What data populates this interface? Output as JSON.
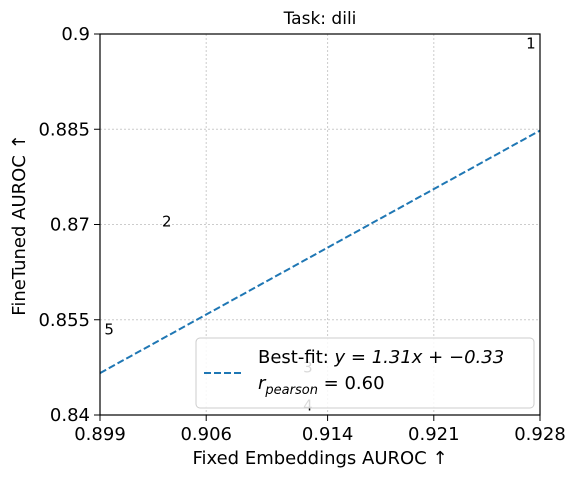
{
  "chart_data": {
    "type": "scatter",
    "title": "Task: dili",
    "xlabel": "Fixed Embeddings AUROC ↑",
    "ylabel": "FineTuned AUROC ↑",
    "xlim": [
      0.899,
      0.928
    ],
    "ylim": [
      0.84,
      0.9
    ],
    "xticks": [
      "0.899",
      "0.906",
      "0.914",
      "0.921",
      "0.928"
    ],
    "xtick_values": [
      0.899,
      0.906,
      0.914,
      0.921,
      0.928
    ],
    "yticks": [
      "0.84",
      "0.855",
      "0.87",
      "0.885",
      "0.9"
    ],
    "ytick_values": [
      0.84,
      0.855,
      0.87,
      0.885,
      0.9
    ],
    "grid": true,
    "points": [
      {
        "label": "1",
        "x": 0.9274,
        "y": 0.8985
      },
      {
        "label": "2",
        "x": 0.9034,
        "y": 0.8705
      },
      {
        "label": "3",
        "x": 0.9127,
        "y": 0.8475
      },
      {
        "label": "4",
        "x": 0.9127,
        "y": 0.8415
      },
      {
        "label": "5",
        "x": 0.8996,
        "y": 0.8535
      }
    ],
    "fit_line": {
      "slope": 1.31,
      "intercept": -0.33,
      "x": [
        0.899,
        0.928
      ],
      "y": [
        0.8466,
        0.8848
      ]
    },
    "legend": {
      "placement": "bottom-right",
      "line1_prefix": "Best-fit: ",
      "line1_math": "y = 1.31x + −0.33",
      "line2_r": "r",
      "line2_sub": "pearson",
      "line2_rest": " = 0.60"
    },
    "colors": {
      "fit": "#1f77b4",
      "grid": "#cccccc"
    }
  }
}
